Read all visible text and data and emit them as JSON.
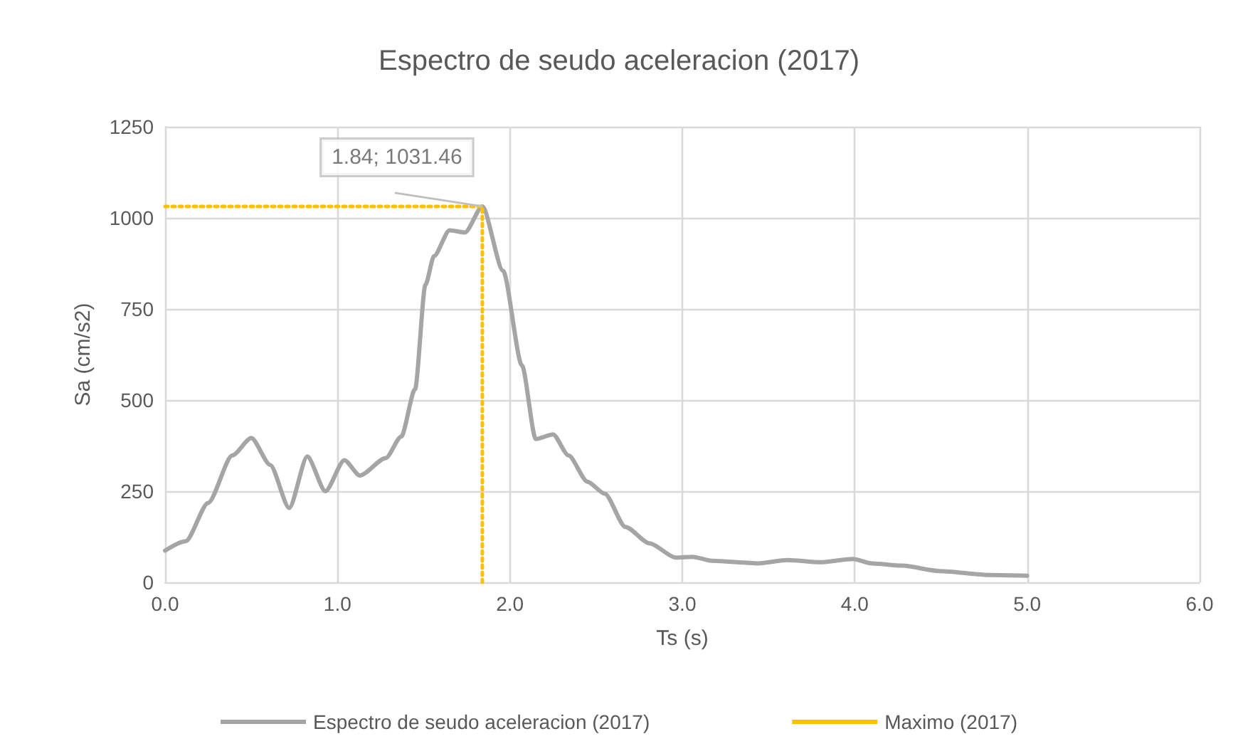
{
  "chart_data": {
    "type": "line",
    "title": "Espectro de seudo aceleracion (2017)",
    "xlabel": "Ts (s)",
    "ylabel": "Sa (cm/s2)",
    "xlim": [
      0,
      6
    ],
    "xticks": [
      {
        "value": 0,
        "label": "0.0"
      },
      {
        "value": 1,
        "label": "1.0"
      },
      {
        "value": 2,
        "label": "2.0"
      },
      {
        "value": 3,
        "label": "3.0"
      },
      {
        "value": 4,
        "label": "4.0"
      },
      {
        "value": 5,
        "label": "5.0"
      },
      {
        "value": 6,
        "label": "6.0"
      }
    ],
    "ylim": [
      0,
      1250
    ],
    "yticks": [
      0,
      250,
      500,
      750,
      1000,
      1250
    ],
    "grid": true,
    "legend": "bottom",
    "marker": "none",
    "annotations": [
      {
        "text": "1.84; 1031.46",
        "x": 1.84,
        "y": 1031.46
      }
    ],
    "series": [
      {
        "name": "Espectro de seudo aceleracion (2017)",
        "color": "#a5a5a5",
        "line_style": "solid",
        "x": [
          0.0,
          0.12,
          0.25,
          0.39,
          0.5,
          0.61,
          0.72,
          0.825,
          0.93,
          1.04,
          1.13,
          1.28,
          1.37,
          1.45,
          1.51,
          1.56,
          1.65,
          1.74,
          1.84,
          1.96,
          2.07,
          2.15,
          2.25,
          2.34,
          2.45,
          2.55,
          2.67,
          2.81,
          2.96,
          3.06,
          3.17,
          3.44,
          3.61,
          3.8,
          3.99,
          4.1,
          4.27,
          4.49,
          4.79,
          5.0
        ],
        "values": [
          87,
          113,
          218,
          348,
          396,
          322,
          204,
          345,
          250,
          335,
          293,
          341,
          400,
          530,
          816,
          895,
          966,
          960,
          1031.46,
          855,
          595,
          393,
          406,
          348,
          276,
          243,
          152,
          107,
          68,
          70,
          59,
          52,
          61,
          55,
          64,
          52,
          46,
          31,
          20,
          18
        ]
      },
      {
        "name": "Maximo (2017)",
        "color": "#ffc000",
        "line_style": "dotted",
        "x": [
          0,
          1.84,
          1.84
        ],
        "values": [
          1031.46,
          1031.46,
          0
        ]
      }
    ]
  }
}
